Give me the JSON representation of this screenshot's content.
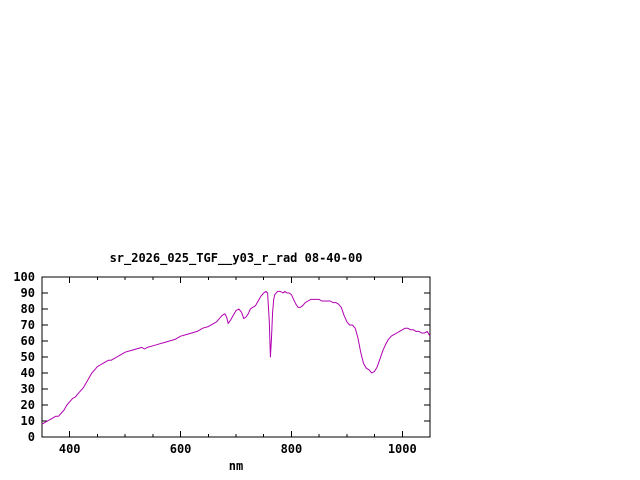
{
  "chart_data": {
    "type": "line",
    "title": "sr_2026_025_TGF__y03_r_rad 08-40-00",
    "xlabel": "nm",
    "ylabel": "",
    "xlim": [
      350,
      1050
    ],
    "ylim": [
      0,
      100
    ],
    "x_ticks": [
      400,
      600,
      800,
      1000
    ],
    "x_minor_tick_step": 50,
    "y_ticks": [
      0,
      10,
      20,
      30,
      40,
      50,
      60,
      70,
      80,
      90,
      100
    ],
    "grid": false,
    "legend": "none",
    "line_color": "#b000b0",
    "border_color": "#000000",
    "background_color": "#ffffff",
    "series": [
      {
        "name": "sr_2026_025_TGF__y03_r_rad",
        "points": [
          [
            350,
            8
          ],
          [
            355,
            9
          ],
          [
            360,
            10
          ],
          [
            365,
            11
          ],
          [
            370,
            12
          ],
          [
            375,
            13
          ],
          [
            380,
            13
          ],
          [
            385,
            15
          ],
          [
            390,
            17
          ],
          [
            395,
            20
          ],
          [
            400,
            22
          ],
          [
            405,
            24
          ],
          [
            410,
            25
          ],
          [
            415,
            27
          ],
          [
            420,
            29
          ],
          [
            425,
            31
          ],
          [
            430,
            34
          ],
          [
            435,
            37
          ],
          [
            440,
            40
          ],
          [
            445,
            42
          ],
          [
            450,
            44
          ],
          [
            455,
            45
          ],
          [
            460,
            46
          ],
          [
            465,
            47
          ],
          [
            470,
            48
          ],
          [
            475,
            48
          ],
          [
            480,
            49
          ],
          [
            485,
            50
          ],
          [
            490,
            51
          ],
          [
            495,
            52
          ],
          [
            500,
            53
          ],
          [
            510,
            54
          ],
          [
            520,
            55
          ],
          [
            530,
            56
          ],
          [
            535,
            55
          ],
          [
            540,
            56
          ],
          [
            550,
            57
          ],
          [
            560,
            58
          ],
          [
            570,
            59
          ],
          [
            580,
            60
          ],
          [
            590,
            61
          ],
          [
            600,
            63
          ],
          [
            610,
            64
          ],
          [
            620,
            65
          ],
          [
            630,
            66
          ],
          [
            640,
            68
          ],
          [
            650,
            69
          ],
          [
            660,
            71
          ],
          [
            665,
            72
          ],
          [
            670,
            74
          ],
          [
            675,
            76
          ],
          [
            680,
            77
          ],
          [
            683,
            75
          ],
          [
            686,
            71
          ],
          [
            690,
            73
          ],
          [
            695,
            76
          ],
          [
            700,
            79
          ],
          [
            705,
            80
          ],
          [
            710,
            78
          ],
          [
            714,
            74
          ],
          [
            718,
            75
          ],
          [
            722,
            77
          ],
          [
            726,
            80
          ],
          [
            730,
            81
          ],
          [
            735,
            82
          ],
          [
            740,
            85
          ],
          [
            745,
            88
          ],
          [
            750,
            90
          ],
          [
            754,
            91
          ],
          [
            757,
            90
          ],
          [
            760,
            72
          ],
          [
            762,
            50
          ],
          [
            764,
            62
          ],
          [
            766,
            78
          ],
          [
            768,
            86
          ],
          [
            770,
            89
          ],
          [
            775,
            91
          ],
          [
            780,
            91
          ],
          [
            785,
            90
          ],
          [
            788,
            91
          ],
          [
            792,
            90
          ],
          [
            796,
            90
          ],
          [
            800,
            89
          ],
          [
            804,
            86
          ],
          [
            808,
            83
          ],
          [
            812,
            81
          ],
          [
            816,
            81
          ],
          [
            820,
            82
          ],
          [
            825,
            84
          ],
          [
            830,
            85
          ],
          [
            835,
            86
          ],
          [
            840,
            86
          ],
          [
            845,
            86
          ],
          [
            850,
            86
          ],
          [
            855,
            85
          ],
          [
            860,
            85
          ],
          [
            865,
            85
          ],
          [
            870,
            85
          ],
          [
            875,
            84
          ],
          [
            880,
            84
          ],
          [
            885,
            83
          ],
          [
            890,
            81
          ],
          [
            895,
            76
          ],
          [
            900,
            72
          ],
          [
            905,
            70
          ],
          [
            910,
            70
          ],
          [
            915,
            68
          ],
          [
            920,
            62
          ],
          [
            925,
            53
          ],
          [
            930,
            46
          ],
          [
            935,
            43
          ],
          [
            940,
            42
          ],
          [
            945,
            40
          ],
          [
            950,
            41
          ],
          [
            955,
            44
          ],
          [
            960,
            49
          ],
          [
            965,
            54
          ],
          [
            970,
            58
          ],
          [
            975,
            61
          ],
          [
            980,
            63
          ],
          [
            985,
            64
          ],
          [
            990,
            65
          ],
          [
            995,
            66
          ],
          [
            1000,
            67
          ],
          [
            1005,
            68
          ],
          [
            1010,
            68
          ],
          [
            1015,
            67
          ],
          [
            1020,
            67
          ],
          [
            1025,
            66
          ],
          [
            1030,
            66
          ],
          [
            1035,
            65
          ],
          [
            1040,
            65
          ],
          [
            1045,
            66
          ],
          [
            1050,
            63
          ]
        ]
      }
    ]
  }
}
